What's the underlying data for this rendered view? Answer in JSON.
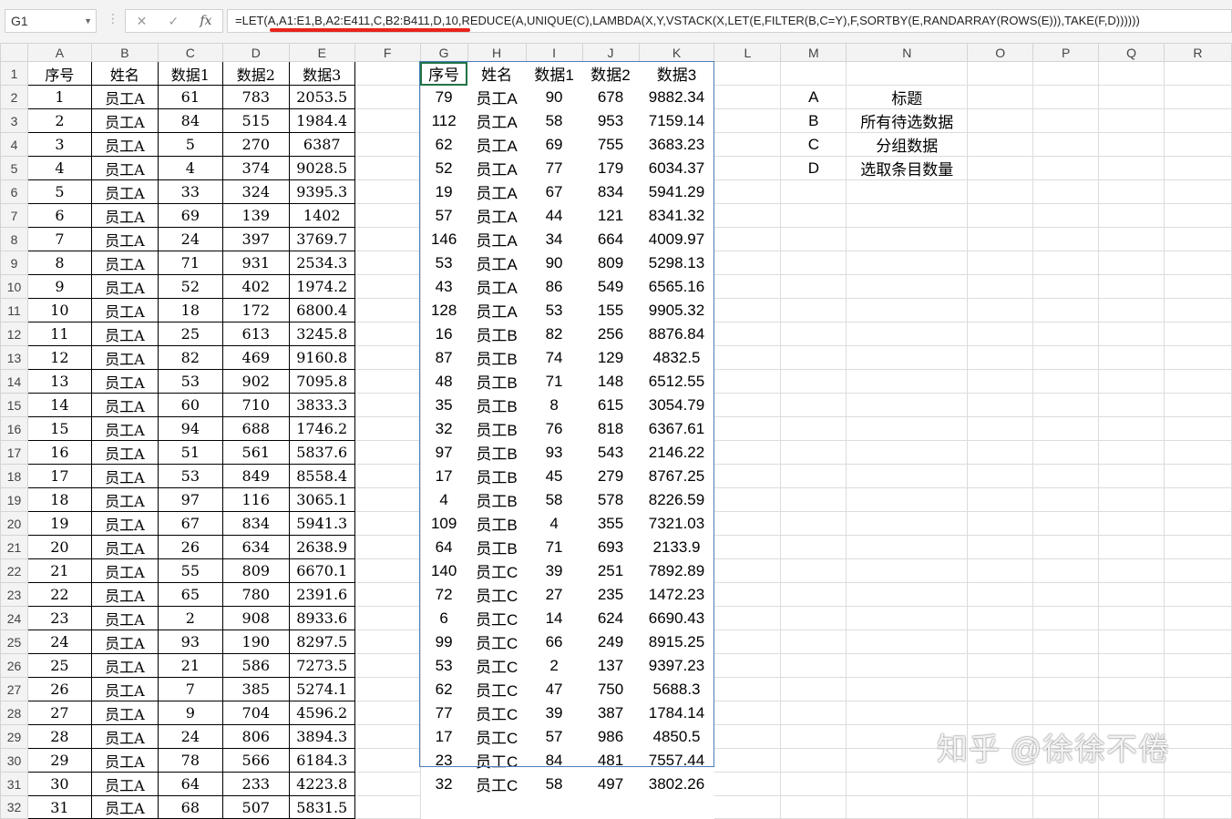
{
  "name_box": "G1",
  "formula_buttons": {
    "cancel": "✕",
    "enter": "✓",
    "fx": "fx"
  },
  "formula": "=LET(A,A1:E1,B,A2:E411,C,B2:B411,D,10,REDUCE(A,UNIQUE(C),LAMBDA(X,Y,VSTACK(X,LET(E,FILTER(B,C=Y),F,SORTBY(E,RANDARRAY(ROWS(E))),TAKE(F,D))))))",
  "columns": [
    "A",
    "B",
    "C",
    "D",
    "E",
    "F",
    "G",
    "H",
    "I",
    "J",
    "K",
    "L",
    "M",
    "N",
    "O",
    "P",
    "Q",
    "R"
  ],
  "row_numbers": [
    1,
    2,
    3,
    4,
    5,
    6,
    7,
    8,
    9,
    10,
    11,
    12,
    13,
    14,
    15,
    16,
    17,
    18,
    19,
    20,
    21,
    22,
    23,
    24,
    25,
    26,
    27,
    28,
    29,
    30,
    31,
    32
  ],
  "headers": [
    "序号",
    "姓名",
    "数据1",
    "数据2",
    "数据3"
  ],
  "left_table": [
    [
      "1",
      "员工A",
      "61",
      "783",
      "2053.5"
    ],
    [
      "2",
      "员工A",
      "84",
      "515",
      "1984.4"
    ],
    [
      "3",
      "员工A",
      "5",
      "270",
      "6387"
    ],
    [
      "4",
      "员工A",
      "4",
      "374",
      "9028.5"
    ],
    [
      "5",
      "员工A",
      "33",
      "324",
      "9395.3"
    ],
    [
      "6",
      "员工A",
      "69",
      "139",
      "1402"
    ],
    [
      "7",
      "员工A",
      "24",
      "397",
      "3769.7"
    ],
    [
      "8",
      "员工A",
      "71",
      "931",
      "2534.3"
    ],
    [
      "9",
      "员工A",
      "52",
      "402",
      "1974.2"
    ],
    [
      "10",
      "员工A",
      "18",
      "172",
      "6800.4"
    ],
    [
      "11",
      "员工A",
      "25",
      "613",
      "3245.8"
    ],
    [
      "12",
      "员工A",
      "82",
      "469",
      "9160.8"
    ],
    [
      "13",
      "员工A",
      "53",
      "902",
      "7095.8"
    ],
    [
      "14",
      "员工A",
      "60",
      "710",
      "3833.3"
    ],
    [
      "15",
      "员工A",
      "94",
      "688",
      "1746.2"
    ],
    [
      "16",
      "员工A",
      "51",
      "561",
      "5837.6"
    ],
    [
      "17",
      "员工A",
      "53",
      "849",
      "8558.4"
    ],
    [
      "18",
      "员工A",
      "97",
      "116",
      "3065.1"
    ],
    [
      "19",
      "员工A",
      "67",
      "834",
      "5941.3"
    ],
    [
      "20",
      "员工A",
      "26",
      "634",
      "2638.9"
    ],
    [
      "21",
      "员工A",
      "55",
      "809",
      "6670.1"
    ],
    [
      "22",
      "员工A",
      "65",
      "780",
      "2391.6"
    ],
    [
      "23",
      "员工A",
      "2",
      "908",
      "8933.6"
    ],
    [
      "24",
      "员工A",
      "93",
      "190",
      "8297.5"
    ],
    [
      "25",
      "员工A",
      "21",
      "586",
      "7273.5"
    ],
    [
      "26",
      "员工A",
      "7",
      "385",
      "5274.1"
    ],
    [
      "27",
      "员工A",
      "9",
      "704",
      "4596.2"
    ],
    [
      "28",
      "员工A",
      "24",
      "806",
      "3894.3"
    ],
    [
      "29",
      "员工A",
      "78",
      "566",
      "6184.3"
    ],
    [
      "30",
      "员工A",
      "64",
      "233",
      "4223.8"
    ],
    [
      "31",
      "员工A",
      "68",
      "507",
      "5831.5"
    ]
  ],
  "right_table": [
    [
      "79",
      "员工A",
      "90",
      "678",
      "9882.34"
    ],
    [
      "112",
      "员工A",
      "58",
      "953",
      "7159.14"
    ],
    [
      "62",
      "员工A",
      "69",
      "755",
      "3683.23"
    ],
    [
      "52",
      "员工A",
      "77",
      "179",
      "6034.37"
    ],
    [
      "19",
      "员工A",
      "67",
      "834",
      "5941.29"
    ],
    [
      "57",
      "员工A",
      "44",
      "121",
      "8341.32"
    ],
    [
      "146",
      "员工A",
      "34",
      "664",
      "4009.97"
    ],
    [
      "53",
      "员工A",
      "90",
      "809",
      "5298.13"
    ],
    [
      "43",
      "员工A",
      "86",
      "549",
      "6565.16"
    ],
    [
      "128",
      "员工A",
      "53",
      "155",
      "9905.32"
    ],
    [
      "16",
      "员工B",
      "82",
      "256",
      "8876.84"
    ],
    [
      "87",
      "员工B",
      "74",
      "129",
      "4832.5"
    ],
    [
      "48",
      "员工B",
      "71",
      "148",
      "6512.55"
    ],
    [
      "35",
      "员工B",
      "8",
      "615",
      "3054.79"
    ],
    [
      "32",
      "员工B",
      "76",
      "818",
      "6367.61"
    ],
    [
      "97",
      "员工B",
      "93",
      "543",
      "2146.22"
    ],
    [
      "17",
      "员工B",
      "45",
      "279",
      "8767.25"
    ],
    [
      "4",
      "员工B",
      "58",
      "578",
      "8226.59"
    ],
    [
      "109",
      "员工B",
      "4",
      "355",
      "7321.03"
    ],
    [
      "64",
      "员工B",
      "71",
      "693",
      "2133.9"
    ],
    [
      "140",
      "员工C",
      "39",
      "251",
      "7892.89"
    ],
    [
      "72",
      "员工C",
      "27",
      "235",
      "1472.23"
    ],
    [
      "6",
      "员工C",
      "14",
      "624",
      "6690.43"
    ],
    [
      "99",
      "员工C",
      "66",
      "249",
      "8915.25"
    ],
    [
      "53",
      "员工C",
      "2",
      "137",
      "9397.23"
    ],
    [
      "62",
      "员工C",
      "47",
      "750",
      "5688.3"
    ],
    [
      "77",
      "员工C",
      "39",
      "387",
      "1784.14"
    ],
    [
      "17",
      "员工C",
      "57",
      "986",
      "4850.5"
    ],
    [
      "23",
      "员工C",
      "84",
      "481",
      "7557.44"
    ],
    [
      "32",
      "员工C",
      "58",
      "497",
      "3802.26"
    ]
  ],
  "legend": [
    [
      "A",
      "标题"
    ],
    [
      "B",
      "所有待选数据"
    ],
    [
      "C",
      "分组数据"
    ],
    [
      "D",
      "选取条目数量"
    ]
  ],
  "watermark": "知乎 @徐徐不倦",
  "colors": {
    "selection": "#217346",
    "spill_border": "#4a7ebb",
    "underline": "#e8231b"
  }
}
